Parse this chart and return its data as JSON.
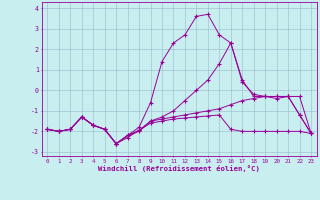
{
  "xlabel": "Windchill (Refroidissement éolien,°C)",
  "xlim": [
    -0.5,
    23.5
  ],
  "ylim": [
    -3.2,
    4.3
  ],
  "xticks": [
    0,
    1,
    2,
    3,
    4,
    5,
    6,
    7,
    8,
    9,
    10,
    11,
    12,
    13,
    14,
    15,
    16,
    17,
    18,
    19,
    20,
    21,
    22,
    23
  ],
  "yticks": [
    -3,
    -2,
    -1,
    0,
    1,
    2,
    3,
    4
  ],
  "background_color": "#c8eef0",
  "line_color": "#990099",
  "grid_color": "#99bbcc",
  "series": [
    {
      "x": [
        0,
        1,
        2,
        3,
        4,
        5,
        6,
        7,
        8,
        9,
        10,
        11,
        12,
        13,
        14,
        15,
        16,
        17,
        18,
        19,
        20,
        21,
        22,
        23
      ],
      "y": [
        -1.9,
        -2.0,
        -1.9,
        -1.3,
        -1.7,
        -1.9,
        -2.6,
        -2.2,
        -1.95,
        -1.6,
        -1.5,
        -1.4,
        -1.35,
        -1.3,
        -1.25,
        -1.2,
        -1.9,
        -2.0,
        -2.0,
        -2.0,
        -2.0,
        -2.0,
        -2.0,
        -2.1
      ]
    },
    {
      "x": [
        0,
        1,
        2,
        3,
        4,
        5,
        6,
        7,
        8,
        9,
        10,
        11,
        12,
        13,
        14,
        15,
        16,
        17,
        18,
        19,
        20,
        21,
        22,
        23
      ],
      "y": [
        -1.9,
        -2.0,
        -1.9,
        -1.3,
        -1.7,
        -1.9,
        -2.6,
        -2.2,
        -2.0,
        -1.5,
        -1.4,
        -1.3,
        -1.2,
        -1.1,
        -1.0,
        -0.9,
        -0.7,
        -0.5,
        -0.4,
        -0.3,
        -0.4,
        -0.3,
        -1.2,
        -2.1
      ]
    },
    {
      "x": [
        0,
        1,
        2,
        3,
        4,
        5,
        6,
        7,
        8,
        9,
        10,
        11,
        12,
        13,
        14,
        15,
        16,
        17,
        18,
        19,
        20,
        21,
        22,
        23
      ],
      "y": [
        -1.9,
        -2.0,
        -1.9,
        -1.3,
        -1.7,
        -1.9,
        -2.6,
        -2.3,
        -1.95,
        -1.5,
        -1.3,
        -1.0,
        -0.5,
        0.0,
        0.5,
        1.3,
        2.3,
        0.5,
        -0.3,
        -0.3,
        -0.3,
        -0.3,
        -1.2,
        -2.1
      ]
    },
    {
      "x": [
        0,
        1,
        2,
        3,
        4,
        5,
        6,
        7,
        8,
        9,
        10,
        11,
        12,
        13,
        14,
        15,
        16,
        17,
        18,
        19,
        20,
        21,
        22,
        23
      ],
      "y": [
        -1.9,
        -2.0,
        -1.9,
        -1.3,
        -1.7,
        -1.9,
        -2.6,
        -2.2,
        -1.8,
        -0.6,
        1.4,
        2.3,
        2.7,
        3.6,
        3.7,
        2.7,
        2.3,
        0.4,
        -0.2,
        -0.3,
        -0.3,
        -0.3,
        -0.3,
        -2.1
      ]
    }
  ]
}
